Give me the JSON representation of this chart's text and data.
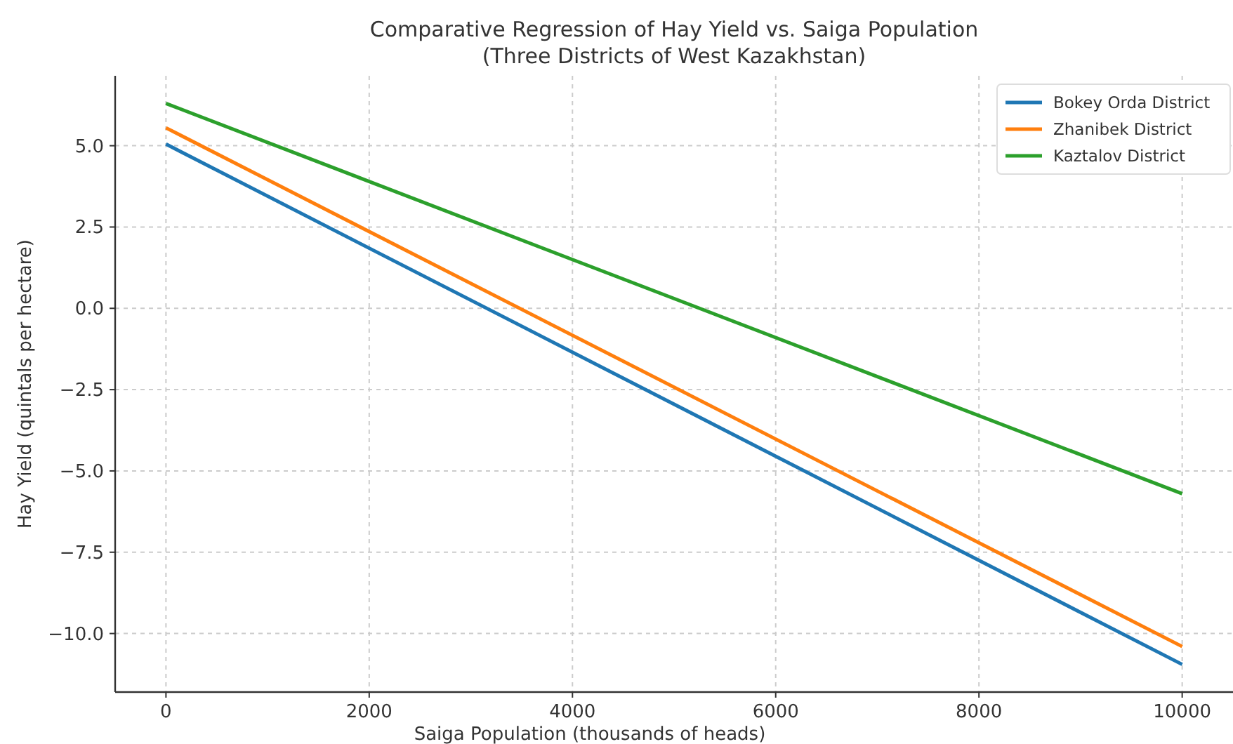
{
  "chart_data": {
    "type": "line",
    "title": "Comparative Regression of Hay Yield vs. Saiga Population",
    "subtitle": "(Three Districts of West Kazakhstan)",
    "xlabel": "Saiga Population (thousands of heads)",
    "ylabel": "Hay Yield (quintals per hectare)",
    "x": [
      0,
      10000
    ],
    "series": [
      {
        "name": "Bokey Orda District",
        "color": "#1f77b4",
        "values": [
          5.05,
          -10.95
        ]
      },
      {
        "name": "Zhanibek District",
        "color": "#ff7f0e",
        "values": [
          5.55,
          -10.4
        ]
      },
      {
        "name": "Kaztalov District",
        "color": "#2ca02c",
        "values": [
          6.3,
          -5.7
        ]
      }
    ],
    "xlim": [
      -500,
      10500
    ],
    "xticks": [
      0,
      2000,
      4000,
      6000,
      8000,
      10000
    ],
    "ylim": [
      -11.8,
      7.15
    ],
    "yticks": [
      {
        "value": -10,
        "label": "−10.0"
      },
      {
        "value": -7.5,
        "label": "−7.5"
      },
      {
        "value": -5,
        "label": "−5.0"
      },
      {
        "value": -2.5,
        "label": "−2.5"
      },
      {
        "value": 0,
        "label": "0.0"
      },
      {
        "value": 2.5,
        "label": "2.5"
      },
      {
        "value": 5,
        "label": "5.0"
      }
    ],
    "grid": true,
    "legend": "top right",
    "line_style": "solid",
    "marker": "none"
  }
}
